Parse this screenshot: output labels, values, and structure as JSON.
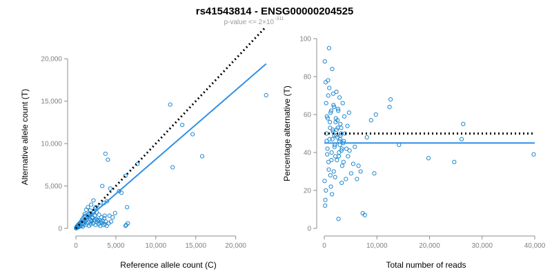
{
  "header": {
    "title": "rs41543814 - ENSG00000204525",
    "subtitle_prefix": "p-value <= 2×10",
    "subtitle_exponent": "-311"
  },
  "chart_data": [
    {
      "type": "scatter",
      "title": "",
      "xlabel": "Reference allele count (C)",
      "ylabel": "Alternative allele count (T)",
      "xlim": [
        0,
        24000
      ],
      "ylim": [
        0,
        24000
      ],
      "xticks": [
        0,
        5000,
        10000,
        15000,
        20000
      ],
      "xtick_labels": [
        "0",
        "5,000",
        "10,000",
        "15,000",
        "20,000"
      ],
      "yticks": [
        0,
        5000,
        10000,
        15000,
        20000
      ],
      "ytick_labels": [
        "0",
        "5,000",
        "10,000",
        "15,000",
        "20,000"
      ],
      "reference_line": {
        "style": "dotted",
        "color": "#000000",
        "x": [
          0,
          23800
        ],
        "y": [
          0,
          23800
        ]
      },
      "fit_line": {
        "style": "solid",
        "color": "#2e8fe6",
        "x": [
          0,
          23800
        ],
        "y": [
          0,
          19400
        ]
      },
      "series": [
        {
          "name": "samples",
          "x": [
            11800,
            13300,
            14600,
            15800,
            12100,
            23800,
            3700,
            4000,
            4300,
            3300,
            3900,
            5400,
            5700,
            6200,
            7700,
            2500,
            3000,
            3500,
            1500,
            1900,
            2200,
            1100,
            1800,
            2400,
            2600,
            6400,
            6500,
            6300,
            6200,
            4200,
            4900,
            1300,
            1700,
            2100,
            2900,
            3200,
            3600,
            4600,
            900,
            1200,
            1600,
            800,
            1000,
            1400,
            2000,
            2300,
            2700,
            500,
            700,
            600,
            300,
            400,
            200,
            150,
            100,
            60,
            1250,
            1550,
            1850,
            2050,
            750,
            950,
            1150,
            1350,
            1450,
            1650,
            1750,
            1950,
            2150,
            2350,
            2450,
            2550,
            2650,
            2750,
            2850,
            2950,
            3050,
            3150,
            3250,
            3350,
            3450,
            3550,
            3650,
            3750,
            3850,
            4100,
            4400,
            850,
            1050,
            1850,
            2250,
            650,
            550,
            450,
            350,
            250,
            120,
            80,
            40,
            20
          ],
          "y": [
            14600,
            12200,
            11100,
            8500,
            7200,
            15700,
            8800,
            8100,
            4700,
            5000,
            3200,
            4400,
            4200,
            6200,
            7600,
            2500,
            2700,
            3000,
            2500,
            2800,
            3300,
            1700,
            2100,
            2400,
            1900,
            2500,
            600,
            400,
            300,
            1500,
            1800,
            2200,
            1500,
            1300,
            1600,
            1300,
            1500,
            1300,
            1200,
            900,
            1700,
            600,
            500,
            1100,
            900,
            1000,
            1000,
            400,
            300,
            700,
            200,
            500,
            300,
            100,
            50,
            30,
            400,
            700,
            500,
            1200,
            1000,
            800,
            1500,
            600,
            1300,
            300,
            1800,
            800,
            600,
            1500,
            400,
            1100,
            700,
            900,
            500,
            1000,
            300,
            800,
            600,
            900,
            400,
            1200,
            500,
            800,
            300,
            600,
            800,
            200,
            1400,
            1000,
            1900,
            800,
            300,
            600,
            150,
            400,
            100,
            200,
            60,
            20
          ]
        }
      ]
    },
    {
      "type": "scatter",
      "title": "",
      "xlabel": "Total number of reads",
      "ylabel": "Percentage alternative (T)",
      "xlim": [
        0,
        40000
      ],
      "ylim": [
        0,
        100
      ],
      "xticks": [
        0,
        10000,
        20000,
        30000,
        40000
      ],
      "xtick_labels": [
        "0",
        "10,000",
        "20,000",
        "30,000",
        "40,000"
      ],
      "yticks": [
        0,
        20,
        40,
        60,
        80,
        100
      ],
      "ytick_labels": [
        "0",
        "20",
        "40",
        "60",
        "80",
        "100"
      ],
      "reference_line": {
        "style": "dotted",
        "color": "#000000",
        "x": [
          0,
          40000
        ],
        "y": [
          50,
          50
        ]
      },
      "fit_line": {
        "style": "solid",
        "color": "#2e8fe6",
        "x": [
          0,
          40000
        ],
        "y": [
          45,
          45
        ]
      },
      "series": [
        {
          "name": "samples",
          "x": [
            39800,
            26400,
            26100,
            24700,
            19800,
            14200,
            12600,
            12400,
            9800,
            9500,
            8900,
            8100,
            7700,
            7300,
            6900,
            6500,
            6200,
            5800,
            5500,
            5100,
            4800,
            4500,
            4200,
            3900,
            3700,
            3400,
            3200,
            3000,
            2800,
            2600,
            2400,
            2200,
            2000,
            1800,
            1600,
            1400,
            1200,
            1000,
            800,
            600,
            400,
            300,
            200,
            100,
            3500,
            2900,
            2300,
            1700,
            1100,
            500,
            4100,
            3300,
            2700,
            2100,
            1500,
            900,
            700,
            350,
            250,
            150,
            50,
            4700,
            3800,
            3100,
            2500,
            1900,
            1300,
            650,
            450,
            4400,
            3600,
            2950,
            2350,
            1650,
            1050,
            550,
            1250,
            1450,
            1850,
            2050,
            2450,
            2650,
            3050,
            3350,
            3650,
            750,
            850,
            950,
            1150,
            1350,
            1550,
            1750,
            1950,
            2150,
            2250,
            2550,
            2750,
            2850,
            3150,
            3250
          ],
          "y": [
            39,
            55,
            47,
            35,
            37,
            44,
            68,
            64,
            60,
            29,
            57,
            48,
            7,
            8,
            30,
            33,
            26,
            43,
            34,
            29,
            41,
            38,
            42,
            50,
            46,
            33,
            53,
            47,
            40,
            63,
            36,
            58,
            44,
            30,
            52,
            40,
            61,
            47,
            35,
            42,
            50,
            20,
            15,
            88,
            66,
            69,
            72,
            71,
            53,
            59,
            26,
            24,
            5,
            38,
            84,
            95,
            78,
            66,
            77,
            12,
            25,
            61,
            59,
            49,
            57,
            49,
            62,
            58,
            46,
            54,
            45,
            44,
            52,
            51,
            56,
            39,
            22,
            18,
            64,
            27,
            48,
            62,
            55,
            42,
            35,
            70,
            31,
            74,
            28,
            36,
            47,
            65,
            43,
            56,
            49,
            53,
            38,
            46,
            50,
            41
          ]
        }
      ]
    }
  ]
}
